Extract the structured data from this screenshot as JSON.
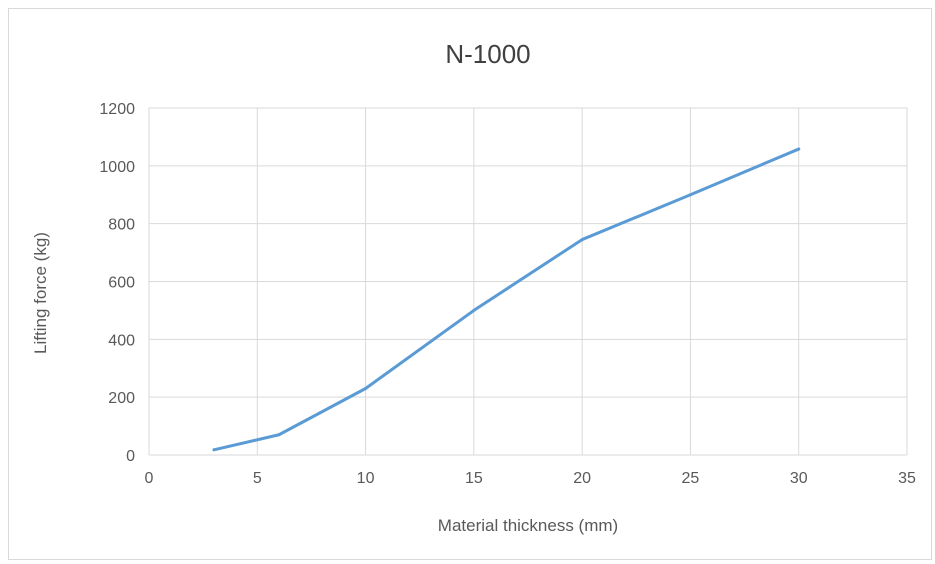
{
  "chart_data": {
    "type": "line",
    "title": "N-1000",
    "xlabel": "Material thickness (mm)",
    "ylabel": "Lifting force (kg)",
    "xlim": [
      0,
      35
    ],
    "ylim": [
      0,
      1200
    ],
    "xticks": [
      0,
      5,
      10,
      15,
      20,
      25,
      30,
      35
    ],
    "yticks": [
      0,
      200,
      400,
      600,
      800,
      1000,
      1200
    ],
    "grid": true,
    "legend": "none",
    "series": [
      {
        "color": "#5b9bd5",
        "points": [
          {
            "x": 3,
            "y": 18
          },
          {
            "x": 6,
            "y": 70
          },
          {
            "x": 10,
            "y": 230
          },
          {
            "x": 15,
            "y": 500
          },
          {
            "x": 20,
            "y": 745
          },
          {
            "x": 25,
            "y": 900
          },
          {
            "x": 30,
            "y": 1058
          }
        ]
      }
    ]
  }
}
